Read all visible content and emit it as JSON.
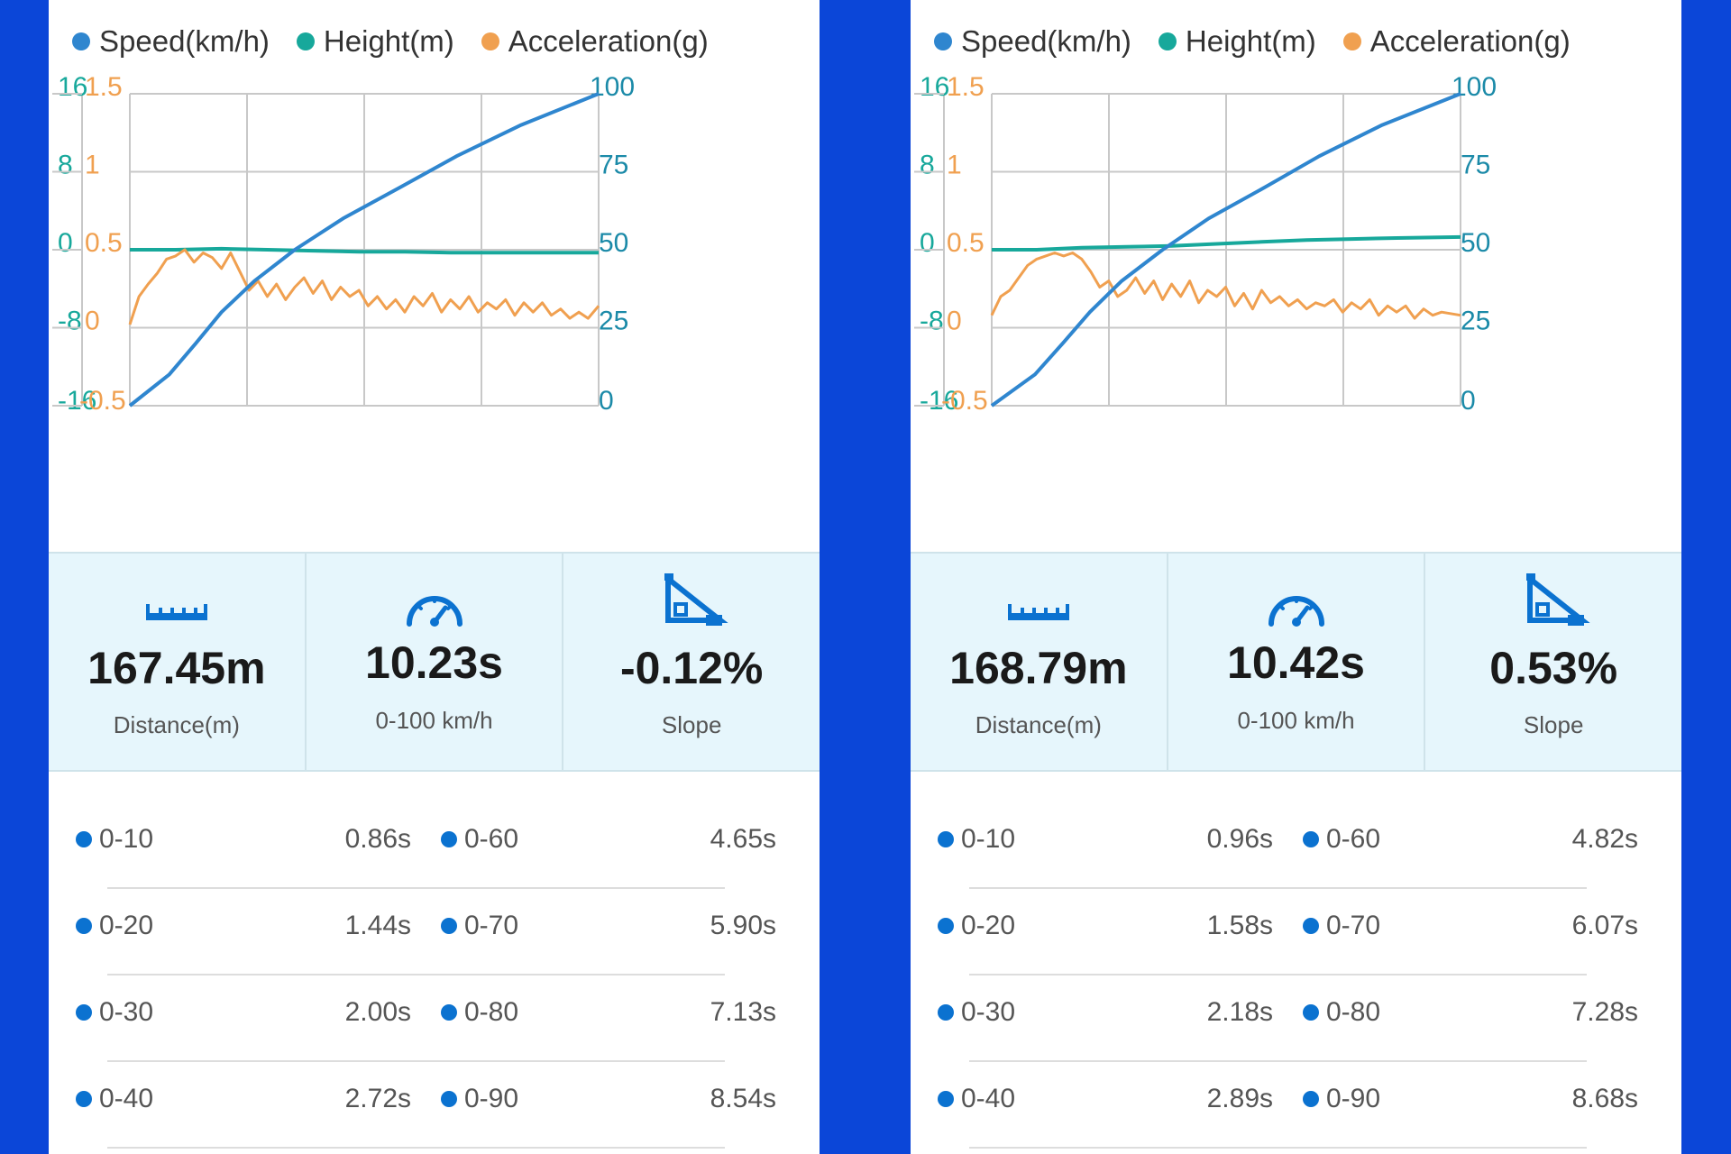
{
  "legend": [
    {
      "label": "Speed(km/h)",
      "color": "#2f86cf"
    },
    {
      "label": "Height(m)",
      "color": "#17a89b"
    },
    {
      "label": "Acceleration(g)",
      "color": "#f0a050"
    }
  ],
  "panels": [
    {
      "chart_data": {
        "type": "line",
        "axes": {
          "height_ticks": [
            "16",
            "8",
            "0",
            "-8",
            "-16"
          ],
          "height_range": [
            -16,
            16
          ],
          "acceleration_ticks": [
            "1.5",
            "1",
            "0.5",
            "0",
            "-0.5"
          ],
          "acceleration_range": [
            -0.5,
            1.5
          ],
          "speed_ticks": [
            "100",
            "75",
            "50",
            "25",
            "0"
          ],
          "speed_range": [
            0,
            100
          ]
        },
        "x_range": [
          0,
          10.23
        ],
        "series": [
          {
            "name": "Speed(km/h)",
            "color": "#2f86cf",
            "x": [
              0,
              0.86,
              1.44,
              2.0,
              2.72,
              3.6,
              4.65,
              5.9,
              7.13,
              8.54,
              10.23
            ],
            "y": [
              0,
              10,
              20,
              30,
              40,
              50,
              60,
              70,
              80,
              90,
              100
            ]
          },
          {
            "name": "Height(m)",
            "color": "#17a89b",
            "x": [
              0,
              1.0,
              2.0,
              3.0,
              4.0,
              5.0,
              6.0,
              7.0,
              8.0,
              9.0,
              10.23
            ],
            "y": [
              0,
              0,
              0.1,
              0,
              -0.1,
              -0.2,
              -0.2,
              -0.3,
              -0.3,
              -0.3,
              -0.3
            ]
          },
          {
            "name": "Acceleration(g)",
            "color": "#f0a050",
            "x": [
              0,
              0.2,
              0.4,
              0.6,
              0.8,
              1.0,
              1.2,
              1.4,
              1.6,
              1.8,
              2.0,
              2.2,
              2.4,
              2.6,
              2.8,
              3.0,
              3.2,
              3.4,
              3.6,
              3.8,
              4.0,
              4.2,
              4.4,
              4.6,
              4.8,
              5.0,
              5.2,
              5.4,
              5.6,
              5.8,
              6.0,
              6.2,
              6.4,
              6.6,
              6.8,
              7.0,
              7.2,
              7.4,
              7.6,
              7.8,
              8.0,
              8.2,
              8.4,
              8.6,
              8.8,
              9.0,
              9.2,
              9.4,
              9.6,
              9.8,
              10.0,
              10.23
            ],
            "y": [
              0.02,
              0.2,
              0.28,
              0.35,
              0.44,
              0.46,
              0.5,
              0.42,
              0.48,
              0.45,
              0.38,
              0.48,
              0.36,
              0.24,
              0.3,
              0.2,
              0.28,
              0.18,
              0.26,
              0.32,
              0.22,
              0.3,
              0.18,
              0.26,
              0.2,
              0.24,
              0.14,
              0.2,
              0.12,
              0.18,
              0.1,
              0.2,
              0.14,
              0.22,
              0.1,
              0.18,
              0.12,
              0.2,
              0.1,
              0.16,
              0.12,
              0.18,
              0.08,
              0.16,
              0.1,
              0.16,
              0.08,
              0.12,
              0.06,
              0.1,
              0.06,
              0.14
            ]
          }
        ]
      },
      "stats": [
        {
          "icon": "ruler-icon",
          "value": "167.45m",
          "label": "Distance(m)"
        },
        {
          "icon": "speedometer-icon",
          "value": "10.23s",
          "label": "0-100 km/h"
        },
        {
          "icon": "slope-icon",
          "value": "-0.12%",
          "label": "Slope"
        }
      ],
      "splits": [
        {
          "left_label": "0-10",
          "left_time": "0.86s",
          "right_label": "0-60",
          "right_time": "4.65s"
        },
        {
          "left_label": "0-20",
          "left_time": "1.44s",
          "right_label": "0-70",
          "right_time": "5.90s"
        },
        {
          "left_label": "0-30",
          "left_time": "2.00s",
          "right_label": "0-80",
          "right_time": "7.13s"
        },
        {
          "left_label": "0-40",
          "left_time": "2.72s",
          "right_label": "0-90",
          "right_time": "8.54s"
        }
      ]
    },
    {
      "chart_data": {
        "type": "line",
        "axes": {
          "height_ticks": [
            "16",
            "8",
            "0",
            "-8",
            "-16"
          ],
          "height_range": [
            -16,
            16
          ],
          "acceleration_ticks": [
            "1.5",
            "1",
            "0.5",
            "0",
            "-0.5"
          ],
          "acceleration_range": [
            -0.5,
            1.5
          ],
          "speed_ticks": [
            "100",
            "75",
            "50",
            "25",
            "0"
          ],
          "speed_range": [
            0,
            100
          ]
        },
        "x_range": [
          0,
          10.42
        ],
        "series": [
          {
            "name": "Speed(km/h)",
            "color": "#2f86cf",
            "x": [
              0,
              0.96,
              1.58,
              2.18,
              2.89,
              3.8,
              4.82,
              6.07,
              7.28,
              8.68,
              10.42
            ],
            "y": [
              0,
              10,
              20,
              30,
              40,
              50,
              60,
              70,
              80,
              90,
              100
            ]
          },
          {
            "name": "Height(m)",
            "color": "#17a89b",
            "x": [
              0,
              1.0,
              2.0,
              3.0,
              4.0,
              5.0,
              6.0,
              7.0,
              8.0,
              9.0,
              10.42
            ],
            "y": [
              0,
              0,
              0.2,
              0.3,
              0.4,
              0.6,
              0.8,
              1.0,
              1.1,
              1.2,
              1.3
            ]
          },
          {
            "name": "Acceleration(g)",
            "color": "#f0a050",
            "x": [
              0,
              0.2,
              0.4,
              0.6,
              0.8,
              1.0,
              1.2,
              1.4,
              1.6,
              1.8,
              2.0,
              2.2,
              2.4,
              2.6,
              2.8,
              3.0,
              3.2,
              3.4,
              3.6,
              3.8,
              4.0,
              4.2,
              4.4,
              4.6,
              4.8,
              5.0,
              5.2,
              5.4,
              5.6,
              5.8,
              6.0,
              6.2,
              6.4,
              6.6,
              6.8,
              7.0,
              7.2,
              7.4,
              7.6,
              7.8,
              8.0,
              8.2,
              8.4,
              8.6,
              8.8,
              9.0,
              9.2,
              9.4,
              9.6,
              9.8,
              10.0,
              10.42
            ],
            "y": [
              0.08,
              0.2,
              0.24,
              0.32,
              0.4,
              0.44,
              0.46,
              0.48,
              0.46,
              0.48,
              0.44,
              0.36,
              0.26,
              0.3,
              0.2,
              0.24,
              0.32,
              0.22,
              0.3,
              0.18,
              0.28,
              0.2,
              0.3,
              0.16,
              0.24,
              0.2,
              0.26,
              0.14,
              0.22,
              0.12,
              0.24,
              0.16,
              0.2,
              0.14,
              0.18,
              0.12,
              0.16,
              0.14,
              0.18,
              0.1,
              0.16,
              0.12,
              0.18,
              0.08,
              0.14,
              0.1,
              0.14,
              0.06,
              0.12,
              0.08,
              0.1,
              0.08
            ]
          }
        ]
      },
      "stats": [
        {
          "icon": "ruler-icon",
          "value": "168.79m",
          "label": "Distance(m)"
        },
        {
          "icon": "speedometer-icon",
          "value": "10.42s",
          "label": "0-100 km/h"
        },
        {
          "icon": "slope-icon",
          "value": "0.53%",
          "label": "Slope"
        }
      ],
      "splits": [
        {
          "left_label": "0-10",
          "left_time": "0.96s",
          "right_label": "0-60",
          "right_time": "4.82s"
        },
        {
          "left_label": "0-20",
          "left_time": "1.58s",
          "right_label": "0-70",
          "right_time": "6.07s"
        },
        {
          "left_label": "0-30",
          "left_time": "2.18s",
          "right_label": "0-80",
          "right_time": "7.28s"
        },
        {
          "left_label": "0-40",
          "left_time": "2.89s",
          "right_label": "0-90",
          "right_time": "8.68s"
        }
      ]
    }
  ]
}
